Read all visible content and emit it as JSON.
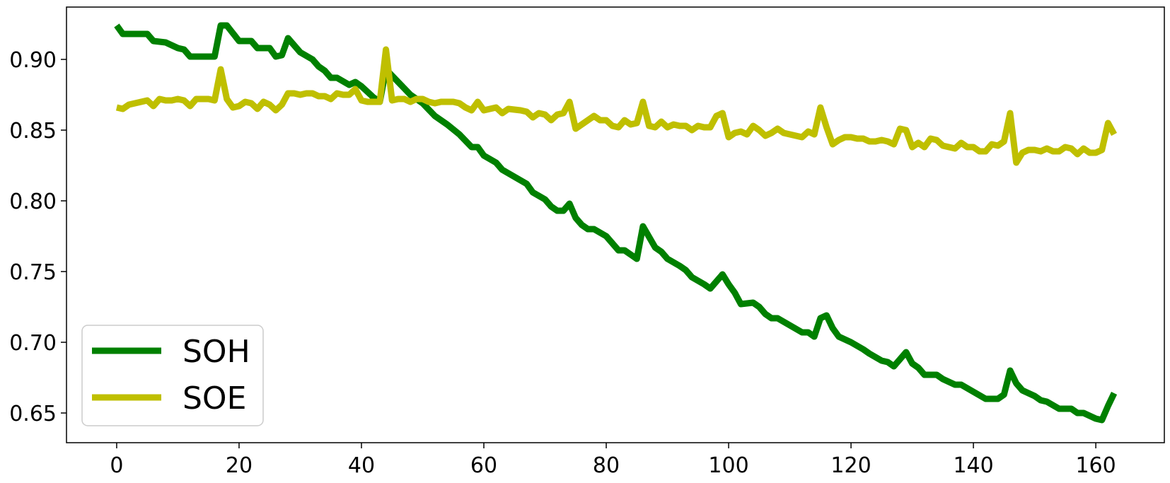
{
  "chart_data": {
    "type": "line",
    "title": "",
    "xlabel": "",
    "ylabel": "",
    "xlim": [
      -8.2,
      171.2
    ],
    "ylim": [
      0.629,
      0.937
    ],
    "x_ticks": [
      0,
      20,
      40,
      60,
      80,
      100,
      120,
      140,
      160
    ],
    "x_tick_labels": [
      "0",
      "20",
      "40",
      "60",
      "80",
      "100",
      "120",
      "140",
      "160"
    ],
    "y_ticks": [
      0.65,
      0.7,
      0.75,
      0.8,
      0.85,
      0.9
    ],
    "y_tick_labels": [
      "0.65",
      "0.70",
      "0.75",
      "0.80",
      "0.85",
      "0.90"
    ],
    "grid": false,
    "legend_position": "lower-left",
    "series": [
      {
        "name": "SOH",
        "color": "#008000",
        "points": [
          [
            0,
            0.924
          ],
          [
            1,
            0.918
          ],
          [
            3,
            0.918
          ],
          [
            5,
            0.918
          ],
          [
            6,
            0.913
          ],
          [
            8,
            0.912
          ],
          [
            10,
            0.908
          ],
          [
            11,
            0.907
          ],
          [
            12,
            0.902
          ],
          [
            14,
            0.902
          ],
          [
            16,
            0.902
          ],
          [
            17,
            0.924
          ],
          [
            18,
            0.924
          ],
          [
            20,
            0.913
          ],
          [
            22,
            0.913
          ],
          [
            23,
            0.908
          ],
          [
            25,
            0.908
          ],
          [
            26,
            0.902
          ],
          [
            27,
            0.903
          ],
          [
            28,
            0.915
          ],
          [
            30,
            0.905
          ],
          [
            32,
            0.9
          ],
          [
            33,
            0.895
          ],
          [
            34,
            0.892
          ],
          [
            35,
            0.887
          ],
          [
            36,
            0.887
          ],
          [
            38,
            0.882
          ],
          [
            39,
            0.884
          ],
          [
            40,
            0.881
          ],
          [
            42,
            0.873
          ],
          [
            43,
            0.87
          ],
          [
            44,
            0.893
          ],
          [
            46,
            0.884
          ],
          [
            48,
            0.875
          ],
          [
            50,
            0.869
          ],
          [
            52,
            0.86
          ],
          [
            54,
            0.854
          ],
          [
            56,
            0.847
          ],
          [
            58,
            0.838
          ],
          [
            59,
            0.838
          ],
          [
            60,
            0.832
          ],
          [
            62,
            0.827
          ],
          [
            63,
            0.822
          ],
          [
            65,
            0.817
          ],
          [
            67,
            0.812
          ],
          [
            68,
            0.806
          ],
          [
            70,
            0.801
          ],
          [
            71,
            0.796
          ],
          [
            72,
            0.793
          ],
          [
            73,
            0.793
          ],
          [
            74,
            0.798
          ],
          [
            75,
            0.788
          ],
          [
            76,
            0.783
          ],
          [
            77,
            0.78
          ],
          [
            78,
            0.78
          ],
          [
            80,
            0.775
          ],
          [
            82,
            0.765
          ],
          [
            83,
            0.765
          ],
          [
            85,
            0.759
          ],
          [
            86,
            0.782
          ],
          [
            88,
            0.767
          ],
          [
            89,
            0.764
          ],
          [
            90,
            0.759
          ],
          [
            92,
            0.754
          ],
          [
            93,
            0.751
          ],
          [
            94,
            0.746
          ],
          [
            96,
            0.741
          ],
          [
            97,
            0.738
          ],
          [
            99,
            0.748
          ],
          [
            100,
            0.741
          ],
          [
            101,
            0.735
          ],
          [
            102,
            0.727
          ],
          [
            104,
            0.728
          ],
          [
            105,
            0.725
          ],
          [
            106,
            0.72
          ],
          [
            107,
            0.717
          ],
          [
            108,
            0.717
          ],
          [
            110,
            0.712
          ],
          [
            112,
            0.707
          ],
          [
            113,
            0.707
          ],
          [
            114,
            0.704
          ],
          [
            115,
            0.717
          ],
          [
            116,
            0.719
          ],
          [
            117,
            0.71
          ],
          [
            118,
            0.704
          ],
          [
            120,
            0.7
          ],
          [
            122,
            0.695
          ],
          [
            123,
            0.692
          ],
          [
            125,
            0.687
          ],
          [
            126,
            0.686
          ],
          [
            127,
            0.683
          ],
          [
            129,
            0.693
          ],
          [
            130,
            0.685
          ],
          [
            131,
            0.682
          ],
          [
            132,
            0.677
          ],
          [
            134,
            0.677
          ],
          [
            135,
            0.674
          ],
          [
            137,
            0.67
          ],
          [
            138,
            0.67
          ],
          [
            140,
            0.665
          ],
          [
            142,
            0.66
          ],
          [
            144,
            0.66
          ],
          [
            145,
            0.663
          ],
          [
            146,
            0.68
          ],
          [
            147,
            0.671
          ],
          [
            148,
            0.666
          ],
          [
            150,
            0.662
          ],
          [
            151,
            0.659
          ],
          [
            152,
            0.658
          ],
          [
            154,
            0.653
          ],
          [
            156,
            0.653
          ],
          [
            157,
            0.65
          ],
          [
            158,
            0.65
          ],
          [
            160,
            0.646
          ],
          [
            161,
            0.645
          ],
          [
            162,
            0.655
          ],
          [
            163,
            0.664
          ]
        ]
      },
      {
        "name": "SOE",
        "color": "#bfbf00",
        "points": [
          [
            0,
            0.866
          ],
          [
            1,
            0.865
          ],
          [
            2,
            0.868
          ],
          [
            4,
            0.87
          ],
          [
            5,
            0.871
          ],
          [
            6,
            0.867
          ],
          [
            7,
            0.872
          ],
          [
            8,
            0.871
          ],
          [
            9,
            0.871
          ],
          [
            10,
            0.872
          ],
          [
            11,
            0.871
          ],
          [
            12,
            0.867
          ],
          [
            13,
            0.872
          ],
          [
            15,
            0.872
          ],
          [
            16,
            0.871
          ],
          [
            17,
            0.893
          ],
          [
            18,
            0.872
          ],
          [
            19,
            0.866
          ],
          [
            20,
            0.867
          ],
          [
            21,
            0.87
          ],
          [
            22,
            0.869
          ],
          [
            23,
            0.865
          ],
          [
            24,
            0.87
          ],
          [
            25,
            0.868
          ],
          [
            26,
            0.864
          ],
          [
            27,
            0.868
          ],
          [
            28,
            0.876
          ],
          [
            29,
            0.876
          ],
          [
            30,
            0.875
          ],
          [
            31,
            0.876
          ],
          [
            32,
            0.876
          ],
          [
            33,
            0.874
          ],
          [
            34,
            0.874
          ],
          [
            35,
            0.872
          ],
          [
            36,
            0.876
          ],
          [
            37,
            0.875
          ],
          [
            38,
            0.875
          ],
          [
            39,
            0.879
          ],
          [
            40,
            0.871
          ],
          [
            41,
            0.87
          ],
          [
            42,
            0.87
          ],
          [
            43,
            0.87
          ],
          [
            44,
            0.907
          ],
          [
            45,
            0.871
          ],
          [
            46,
            0.872
          ],
          [
            47,
            0.872
          ],
          [
            48,
            0.87
          ],
          [
            49,
            0.872
          ],
          [
            50,
            0.872
          ],
          [
            51,
            0.87
          ],
          [
            52,
            0.869
          ],
          [
            53,
            0.87
          ],
          [
            54,
            0.87
          ],
          [
            55,
            0.87
          ],
          [
            56,
            0.869
          ],
          [
            57,
            0.866
          ],
          [
            58,
            0.864
          ],
          [
            59,
            0.87
          ],
          [
            60,
            0.864
          ],
          [
            62,
            0.866
          ],
          [
            63,
            0.862
          ],
          [
            64,
            0.865
          ],
          [
            66,
            0.864
          ],
          [
            67,
            0.863
          ],
          [
            68,
            0.859
          ],
          [
            69,
            0.862
          ],
          [
            70,
            0.861
          ],
          [
            71,
            0.857
          ],
          [
            72,
            0.861
          ],
          [
            73,
            0.862
          ],
          [
            74,
            0.87
          ],
          [
            75,
            0.851
          ],
          [
            76,
            0.854
          ],
          [
            78,
            0.86
          ],
          [
            79,
            0.857
          ],
          [
            80,
            0.857
          ],
          [
            81,
            0.853
          ],
          [
            82,
            0.852
          ],
          [
            83,
            0.857
          ],
          [
            84,
            0.854
          ],
          [
            85,
            0.855
          ],
          [
            86,
            0.87
          ],
          [
            87,
            0.853
          ],
          [
            88,
            0.852
          ],
          [
            89,
            0.856
          ],
          [
            90,
            0.852
          ],
          [
            91,
            0.854
          ],
          [
            92,
            0.853
          ],
          [
            93,
            0.853
          ],
          [
            94,
            0.85
          ],
          [
            95,
            0.853
          ],
          [
            96,
            0.852
          ],
          [
            97,
            0.852
          ],
          [
            98,
            0.86
          ],
          [
            99,
            0.862
          ],
          [
            100,
            0.845
          ],
          [
            101,
            0.848
          ],
          [
            102,
            0.849
          ],
          [
            103,
            0.847
          ],
          [
            104,
            0.853
          ],
          [
            105,
            0.85
          ],
          [
            106,
            0.846
          ],
          [
            107,
            0.848
          ],
          [
            108,
            0.851
          ],
          [
            109,
            0.848
          ],
          [
            110,
            0.847
          ],
          [
            111,
            0.846
          ],
          [
            112,
            0.845
          ],
          [
            113,
            0.849
          ],
          [
            114,
            0.847
          ],
          [
            115,
            0.866
          ],
          [
            116,
            0.852
          ],
          [
            117,
            0.84
          ],
          [
            118,
            0.843
          ],
          [
            119,
            0.845
          ],
          [
            120,
            0.845
          ],
          [
            121,
            0.844
          ],
          [
            122,
            0.844
          ],
          [
            123,
            0.842
          ],
          [
            124,
            0.842
          ],
          [
            125,
            0.843
          ],
          [
            126,
            0.842
          ],
          [
            127,
            0.84
          ],
          [
            128,
            0.851
          ],
          [
            129,
            0.85
          ],
          [
            130,
            0.838
          ],
          [
            131,
            0.841
          ],
          [
            132,
            0.838
          ],
          [
            133,
            0.844
          ],
          [
            134,
            0.843
          ],
          [
            135,
            0.839
          ],
          [
            136,
            0.838
          ],
          [
            137,
            0.837
          ],
          [
            138,
            0.841
          ],
          [
            139,
            0.838
          ],
          [
            140,
            0.838
          ],
          [
            141,
            0.835
          ],
          [
            142,
            0.835
          ],
          [
            143,
            0.84
          ],
          [
            144,
            0.839
          ],
          [
            145,
            0.842
          ],
          [
            146,
            0.862
          ],
          [
            147,
            0.827
          ],
          [
            148,
            0.834
          ],
          [
            149,
            0.836
          ],
          [
            150,
            0.836
          ],
          [
            151,
            0.835
          ],
          [
            152,
            0.837
          ],
          [
            153,
            0.835
          ],
          [
            154,
            0.835
          ],
          [
            155,
            0.838
          ],
          [
            156,
            0.837
          ],
          [
            157,
            0.833
          ],
          [
            158,
            0.837
          ],
          [
            159,
            0.834
          ],
          [
            160,
            0.834
          ],
          [
            161,
            0.836
          ],
          [
            162,
            0.855
          ],
          [
            163,
            0.847
          ]
        ]
      }
    ]
  }
}
